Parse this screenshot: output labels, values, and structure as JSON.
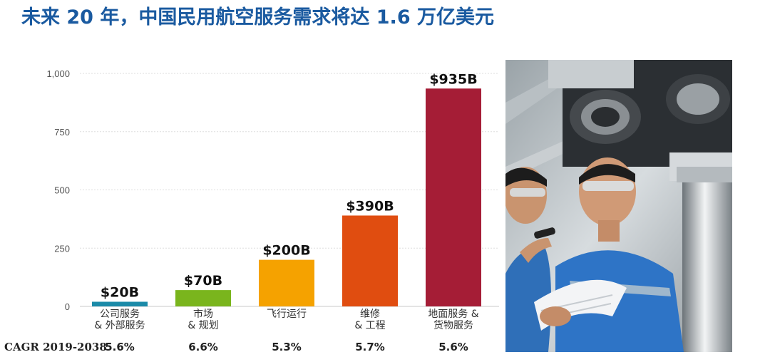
{
  "header": {
    "title": "未来 20 年，中国民用航空服务需求将达 1.6 万亿美元"
  },
  "chart_data": {
    "type": "bar",
    "categories": [
      [
        "公司服务",
        "& 外部服务"
      ],
      [
        "市场",
        "& 规划"
      ],
      [
        "飞行运行"
      ],
      [
        "维修",
        "& 工程"
      ],
      [
        "地面服务 &",
        "货物服务"
      ]
    ],
    "values": [
      20,
      70,
      200,
      390,
      935
    ],
    "value_labels": [
      "$20B",
      "$70B",
      "$200B",
      "$390B",
      "$935B"
    ],
    "colors": [
      "#1a8aa8",
      "#7ab51d",
      "#f5a200",
      "#e04d10",
      "#a51d36"
    ],
    "yticks": [
      0,
      250,
      500,
      750,
      1000
    ],
    "ytick_labels": [
      "0",
      "250",
      "500",
      "750",
      "1,000"
    ],
    "ylim": [
      0,
      1000
    ],
    "grid": true,
    "cagr_label": "CAGR 2019-2038",
    "cagr": [
      "5.6%",
      "6.6%",
      "5.3%",
      "5.7%",
      "5.6%"
    ]
  },
  "photo": {
    "subject": "two technicians inspecting aircraft landing gear"
  }
}
